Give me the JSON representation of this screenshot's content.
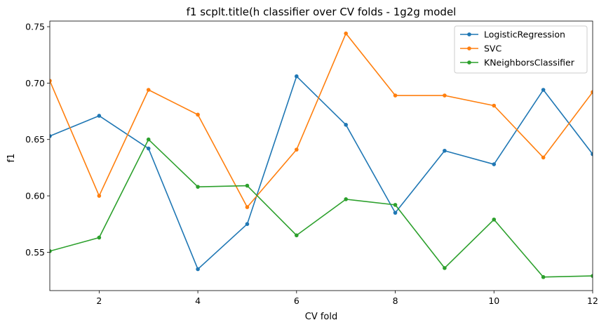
{
  "chart_data": {
    "type": "line",
    "title": "f1 scplt.title(h classifier over CV folds - 1g2g model",
    "xlabel": "CV fold",
    "ylabel": "f1",
    "xlim": [
      1,
      12
    ],
    "ylim": [
      0.516,
      0.755
    ],
    "xticks": [
      2,
      4,
      6,
      8,
      10,
      12
    ],
    "yticks": [
      0.55,
      0.6,
      0.65,
      0.7,
      0.75
    ],
    "ytick_labels": [
      "0.55",
      "0.60",
      "0.65",
      "0.70",
      "0.75"
    ],
    "grid": false,
    "legend_position": "top-right",
    "x": [
      1,
      2,
      3,
      4,
      5,
      6,
      7,
      8,
      9,
      10,
      11,
      12
    ],
    "series": [
      {
        "name": "LogisticRegression",
        "color": "#1f77b4",
        "values": [
          0.653,
          0.671,
          0.642,
          0.535,
          0.575,
          0.706,
          0.663,
          0.585,
          0.64,
          0.628,
          0.694,
          0.637
        ]
      },
      {
        "name": "SVC",
        "color": "#ff7f0e",
        "values": [
          0.702,
          0.6,
          0.694,
          0.672,
          0.59,
          0.641,
          0.744,
          0.689,
          0.689,
          0.68,
          0.634,
          0.692
        ]
      },
      {
        "name": "KNeighborsClassifier",
        "color": "#2ca02c",
        "values": [
          0.551,
          0.563,
          0.65,
          0.608,
          0.609,
          0.565,
          0.597,
          0.592,
          0.536,
          0.579,
          0.528,
          0.529
        ]
      }
    ]
  }
}
